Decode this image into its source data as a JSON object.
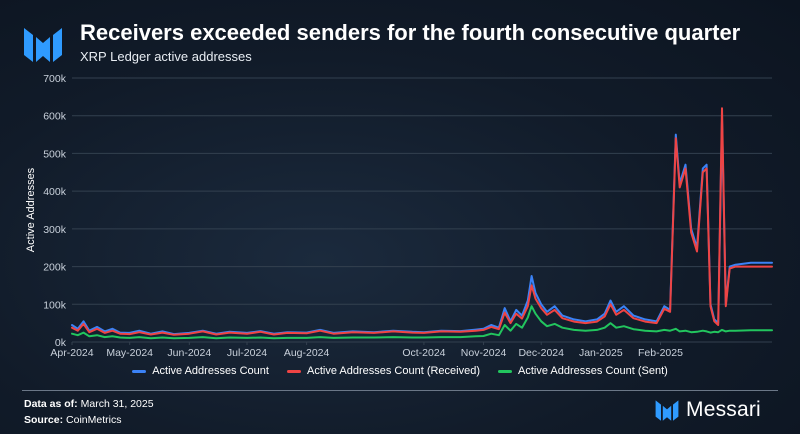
{
  "header": {
    "title": "Receivers exceeded senders for the fourth consecutive quarter",
    "subtitle": "XRP Ledger active addresses"
  },
  "footer": {
    "data_as_of_label": "Data as of:",
    "data_as_of_value": "March 31, 2025",
    "source_label": "Source:",
    "source_value": "CoinMetrics",
    "brand": "Messari"
  },
  "colors": {
    "count": "#3b82f6",
    "received": "#ef4444",
    "sent": "#22c55e",
    "grid": "#33404f",
    "axis_text": "#c9d1db"
  },
  "chart_data": {
    "type": "line",
    "xlabel": "",
    "ylabel": "Active Addresses",
    "ylim": [
      0,
      700000
    ],
    "yticks": [
      0,
      100000,
      200000,
      300000,
      400000,
      500000,
      600000,
      700000
    ],
    "ytick_labels": [
      "0k",
      "100k",
      "200k",
      "300k",
      "400k",
      "500k",
      "600k",
      "700k"
    ],
    "xlim": [
      "2024-04-01",
      "2025-03-31"
    ],
    "xticks": [
      "2024-04-01",
      "2024-05-01",
      "2024-06-01",
      "2024-07-01",
      "2024-08-01",
      "2024-10-01",
      "2024-11-01",
      "2024-12-01",
      "2025-01-01",
      "2025-02-01"
    ],
    "xtick_labels": [
      "Apr-2024",
      "May-2024",
      "Jun-2024",
      "Jul-2024",
      "Aug-2024",
      "Oct-2024",
      "Nov-2024",
      "Dec-2024",
      "Jan-2025",
      "Feb-2025"
    ],
    "grid": true,
    "legend_position": "bottom",
    "series": [
      {
        "name": "Active Addresses Count",
        "color": "#3b82f6",
        "points": [
          [
            "2024-04-01",
            45000
          ],
          [
            "2024-04-04",
            35000
          ],
          [
            "2024-04-07",
            55000
          ],
          [
            "2024-04-10",
            30000
          ],
          [
            "2024-04-14",
            40000
          ],
          [
            "2024-04-18",
            28000
          ],
          [
            "2024-04-22",
            35000
          ],
          [
            "2024-04-26",
            25000
          ],
          [
            "2024-05-01",
            24000
          ],
          [
            "2024-05-06",
            30000
          ],
          [
            "2024-05-12",
            22000
          ],
          [
            "2024-05-18",
            28000
          ],
          [
            "2024-05-24",
            21000
          ],
          [
            "2024-06-01",
            24000
          ],
          [
            "2024-06-08",
            30000
          ],
          [
            "2024-06-15",
            22000
          ],
          [
            "2024-06-22",
            27000
          ],
          [
            "2024-07-01",
            24000
          ],
          [
            "2024-07-08",
            29000
          ],
          [
            "2024-07-15",
            22000
          ],
          [
            "2024-07-22",
            26000
          ],
          [
            "2024-08-01",
            25000
          ],
          [
            "2024-08-08",
            32000
          ],
          [
            "2024-08-15",
            24000
          ],
          [
            "2024-08-25",
            28000
          ],
          [
            "2024-09-05",
            26000
          ],
          [
            "2024-09-15",
            30000
          ],
          [
            "2024-09-25",
            27000
          ],
          [
            "2024-10-01",
            26000
          ],
          [
            "2024-10-10",
            30000
          ],
          [
            "2024-10-20",
            29000
          ],
          [
            "2024-10-28",
            33000
          ],
          [
            "2024-11-01",
            35000
          ],
          [
            "2024-11-05",
            45000
          ],
          [
            "2024-11-09",
            38000
          ],
          [
            "2024-11-12",
            90000
          ],
          [
            "2024-11-15",
            55000
          ],
          [
            "2024-11-18",
            85000
          ],
          [
            "2024-11-21",
            70000
          ],
          [
            "2024-11-24",
            110000
          ],
          [
            "2024-11-26",
            175000
          ],
          [
            "2024-11-28",
            130000
          ],
          [
            "2024-12-01",
            100000
          ],
          [
            "2024-12-04",
            80000
          ],
          [
            "2024-12-08",
            95000
          ],
          [
            "2024-12-12",
            70000
          ],
          [
            "2024-12-18",
            60000
          ],
          [
            "2024-12-24",
            55000
          ],
          [
            "2024-12-30",
            60000
          ],
          [
            "2025-01-03",
            75000
          ],
          [
            "2025-01-06",
            110000
          ],
          [
            "2025-01-09",
            80000
          ],
          [
            "2025-01-13",
            95000
          ],
          [
            "2025-01-18",
            70000
          ],
          [
            "2025-01-24",
            60000
          ],
          [
            "2025-01-30",
            55000
          ],
          [
            "2025-02-03",
            95000
          ],
          [
            "2025-02-06",
            85000
          ],
          [
            "2025-02-09",
            550000
          ],
          [
            "2025-02-11",
            420000
          ],
          [
            "2025-02-14",
            470000
          ],
          [
            "2025-02-17",
            300000
          ],
          [
            "2025-02-20",
            250000
          ],
          [
            "2025-02-23",
            460000
          ],
          [
            "2025-02-25",
            470000
          ],
          [
            "2025-02-27",
            100000
          ],
          [
            "2025-03-01",
            60000
          ],
          [
            "2025-03-03",
            50000
          ],
          [
            "2025-03-05",
            590000
          ],
          [
            "2025-03-07",
            100000
          ],
          [
            "2025-03-09",
            200000
          ],
          [
            "2025-03-12",
            205000
          ],
          [
            "2025-03-20",
            210000
          ],
          [
            "2025-03-31",
            210000
          ]
        ]
      },
      {
        "name": "Active Addresses Count (Received)",
        "color": "#ef4444",
        "points": [
          [
            "2024-04-01",
            38000
          ],
          [
            "2024-04-04",
            30000
          ],
          [
            "2024-04-07",
            48000
          ],
          [
            "2024-04-10",
            26000
          ],
          [
            "2024-04-14",
            35000
          ],
          [
            "2024-04-18",
            24000
          ],
          [
            "2024-04-22",
            30000
          ],
          [
            "2024-04-26",
            22000
          ],
          [
            "2024-05-01",
            21000
          ],
          [
            "2024-05-06",
            26000
          ],
          [
            "2024-05-12",
            20000
          ],
          [
            "2024-05-18",
            25000
          ],
          [
            "2024-05-24",
            19000
          ],
          [
            "2024-06-01",
            22000
          ],
          [
            "2024-06-08",
            28000
          ],
          [
            "2024-06-15",
            20000
          ],
          [
            "2024-06-22",
            25000
          ],
          [
            "2024-07-01",
            22000
          ],
          [
            "2024-07-08",
            27000
          ],
          [
            "2024-07-15",
            20000
          ],
          [
            "2024-07-22",
            24000
          ],
          [
            "2024-08-01",
            23000
          ],
          [
            "2024-08-08",
            30000
          ],
          [
            "2024-08-15",
            22000
          ],
          [
            "2024-08-25",
            26000
          ],
          [
            "2024-09-05",
            24000
          ],
          [
            "2024-09-15",
            28000
          ],
          [
            "2024-09-25",
            25000
          ],
          [
            "2024-10-01",
            24000
          ],
          [
            "2024-10-10",
            28000
          ],
          [
            "2024-10-20",
            27000
          ],
          [
            "2024-10-28",
            30000
          ],
          [
            "2024-11-01",
            32000
          ],
          [
            "2024-11-05",
            40000
          ],
          [
            "2024-11-09",
            34000
          ],
          [
            "2024-11-12",
            78000
          ],
          [
            "2024-11-15",
            50000
          ],
          [
            "2024-11-18",
            75000
          ],
          [
            "2024-11-21",
            62000
          ],
          [
            "2024-11-24",
            95000
          ],
          [
            "2024-11-26",
            150000
          ],
          [
            "2024-11-28",
            115000
          ],
          [
            "2024-12-01",
            90000
          ],
          [
            "2024-12-04",
            72000
          ],
          [
            "2024-12-08",
            85000
          ],
          [
            "2024-12-12",
            63000
          ],
          [
            "2024-12-18",
            54000
          ],
          [
            "2024-12-24",
            50000
          ],
          [
            "2024-12-30",
            54000
          ],
          [
            "2025-01-03",
            68000
          ],
          [
            "2025-01-06",
            100000
          ],
          [
            "2025-01-09",
            72000
          ],
          [
            "2025-01-13",
            85000
          ],
          [
            "2025-01-18",
            63000
          ],
          [
            "2025-01-24",
            54000
          ],
          [
            "2025-01-30",
            50000
          ],
          [
            "2025-02-03",
            88000
          ],
          [
            "2025-02-06",
            80000
          ],
          [
            "2025-02-09",
            540000
          ],
          [
            "2025-02-11",
            410000
          ],
          [
            "2025-02-14",
            460000
          ],
          [
            "2025-02-17",
            290000
          ],
          [
            "2025-02-20",
            240000
          ],
          [
            "2025-02-23",
            450000
          ],
          [
            "2025-02-25",
            460000
          ],
          [
            "2025-02-27",
            95000
          ],
          [
            "2025-03-01",
            55000
          ],
          [
            "2025-03-03",
            45000
          ],
          [
            "2025-03-05",
            620000
          ],
          [
            "2025-03-07",
            95000
          ],
          [
            "2025-03-09",
            195000
          ],
          [
            "2025-03-12",
            200000
          ],
          [
            "2025-03-20",
            200000
          ],
          [
            "2025-03-31",
            200000
          ]
        ]
      },
      {
        "name": "Active Addresses Count (Sent)",
        "color": "#22c55e",
        "points": [
          [
            "2024-04-01",
            22000
          ],
          [
            "2024-04-04",
            18000
          ],
          [
            "2024-04-07",
            25000
          ],
          [
            "2024-04-10",
            15000
          ],
          [
            "2024-04-14",
            18000
          ],
          [
            "2024-04-18",
            13000
          ],
          [
            "2024-04-22",
            15000
          ],
          [
            "2024-04-26",
            12000
          ],
          [
            "2024-05-01",
            11000
          ],
          [
            "2024-05-06",
            13000
          ],
          [
            "2024-05-12",
            10000
          ],
          [
            "2024-05-18",
            12000
          ],
          [
            "2024-05-24",
            10000
          ],
          [
            "2024-06-01",
            11000
          ],
          [
            "2024-06-08",
            13000
          ],
          [
            "2024-06-15",
            10000
          ],
          [
            "2024-06-22",
            12000
          ],
          [
            "2024-07-01",
            11000
          ],
          [
            "2024-07-08",
            12000
          ],
          [
            "2024-07-15",
            10000
          ],
          [
            "2024-07-22",
            11000
          ],
          [
            "2024-08-01",
            11000
          ],
          [
            "2024-08-08",
            13000
          ],
          [
            "2024-08-15",
            11000
          ],
          [
            "2024-08-25",
            12000
          ],
          [
            "2024-09-05",
            12000
          ],
          [
            "2024-09-15",
            13000
          ],
          [
            "2024-09-25",
            12000
          ],
          [
            "2024-10-01",
            12000
          ],
          [
            "2024-10-10",
            13000
          ],
          [
            "2024-10-20",
            13000
          ],
          [
            "2024-10-28",
            15000
          ],
          [
            "2024-11-01",
            16000
          ],
          [
            "2024-11-05",
            22000
          ],
          [
            "2024-11-09",
            18000
          ],
          [
            "2024-11-12",
            45000
          ],
          [
            "2024-11-15",
            30000
          ],
          [
            "2024-11-18",
            48000
          ],
          [
            "2024-11-21",
            38000
          ],
          [
            "2024-11-24",
            65000
          ],
          [
            "2024-11-26",
            95000
          ],
          [
            "2024-11-28",
            75000
          ],
          [
            "2024-12-01",
            55000
          ],
          [
            "2024-12-04",
            42000
          ],
          [
            "2024-12-08",
            48000
          ],
          [
            "2024-12-12",
            38000
          ],
          [
            "2024-12-18",
            32000
          ],
          [
            "2024-12-24",
            30000
          ],
          [
            "2024-12-30",
            32000
          ],
          [
            "2025-01-03",
            38000
          ],
          [
            "2025-01-06",
            50000
          ],
          [
            "2025-01-09",
            38000
          ],
          [
            "2025-01-13",
            42000
          ],
          [
            "2025-01-18",
            34000
          ],
          [
            "2025-01-24",
            30000
          ],
          [
            "2025-01-30",
            28000
          ],
          [
            "2025-02-03",
            32000
          ],
          [
            "2025-02-06",
            30000
          ],
          [
            "2025-02-09",
            35000
          ],
          [
            "2025-02-11",
            28000
          ],
          [
            "2025-02-14",
            30000
          ],
          [
            "2025-02-17",
            26000
          ],
          [
            "2025-02-20",
            27000
          ],
          [
            "2025-02-23",
            30000
          ],
          [
            "2025-02-25",
            28000
          ],
          [
            "2025-02-27",
            25000
          ],
          [
            "2025-03-01",
            27000
          ],
          [
            "2025-03-03",
            26000
          ],
          [
            "2025-03-05",
            32000
          ],
          [
            "2025-03-07",
            28000
          ],
          [
            "2025-03-09",
            30000
          ],
          [
            "2025-03-12",
            30000
          ],
          [
            "2025-03-20",
            31000
          ],
          [
            "2025-03-31",
            31000
          ]
        ]
      }
    ]
  }
}
